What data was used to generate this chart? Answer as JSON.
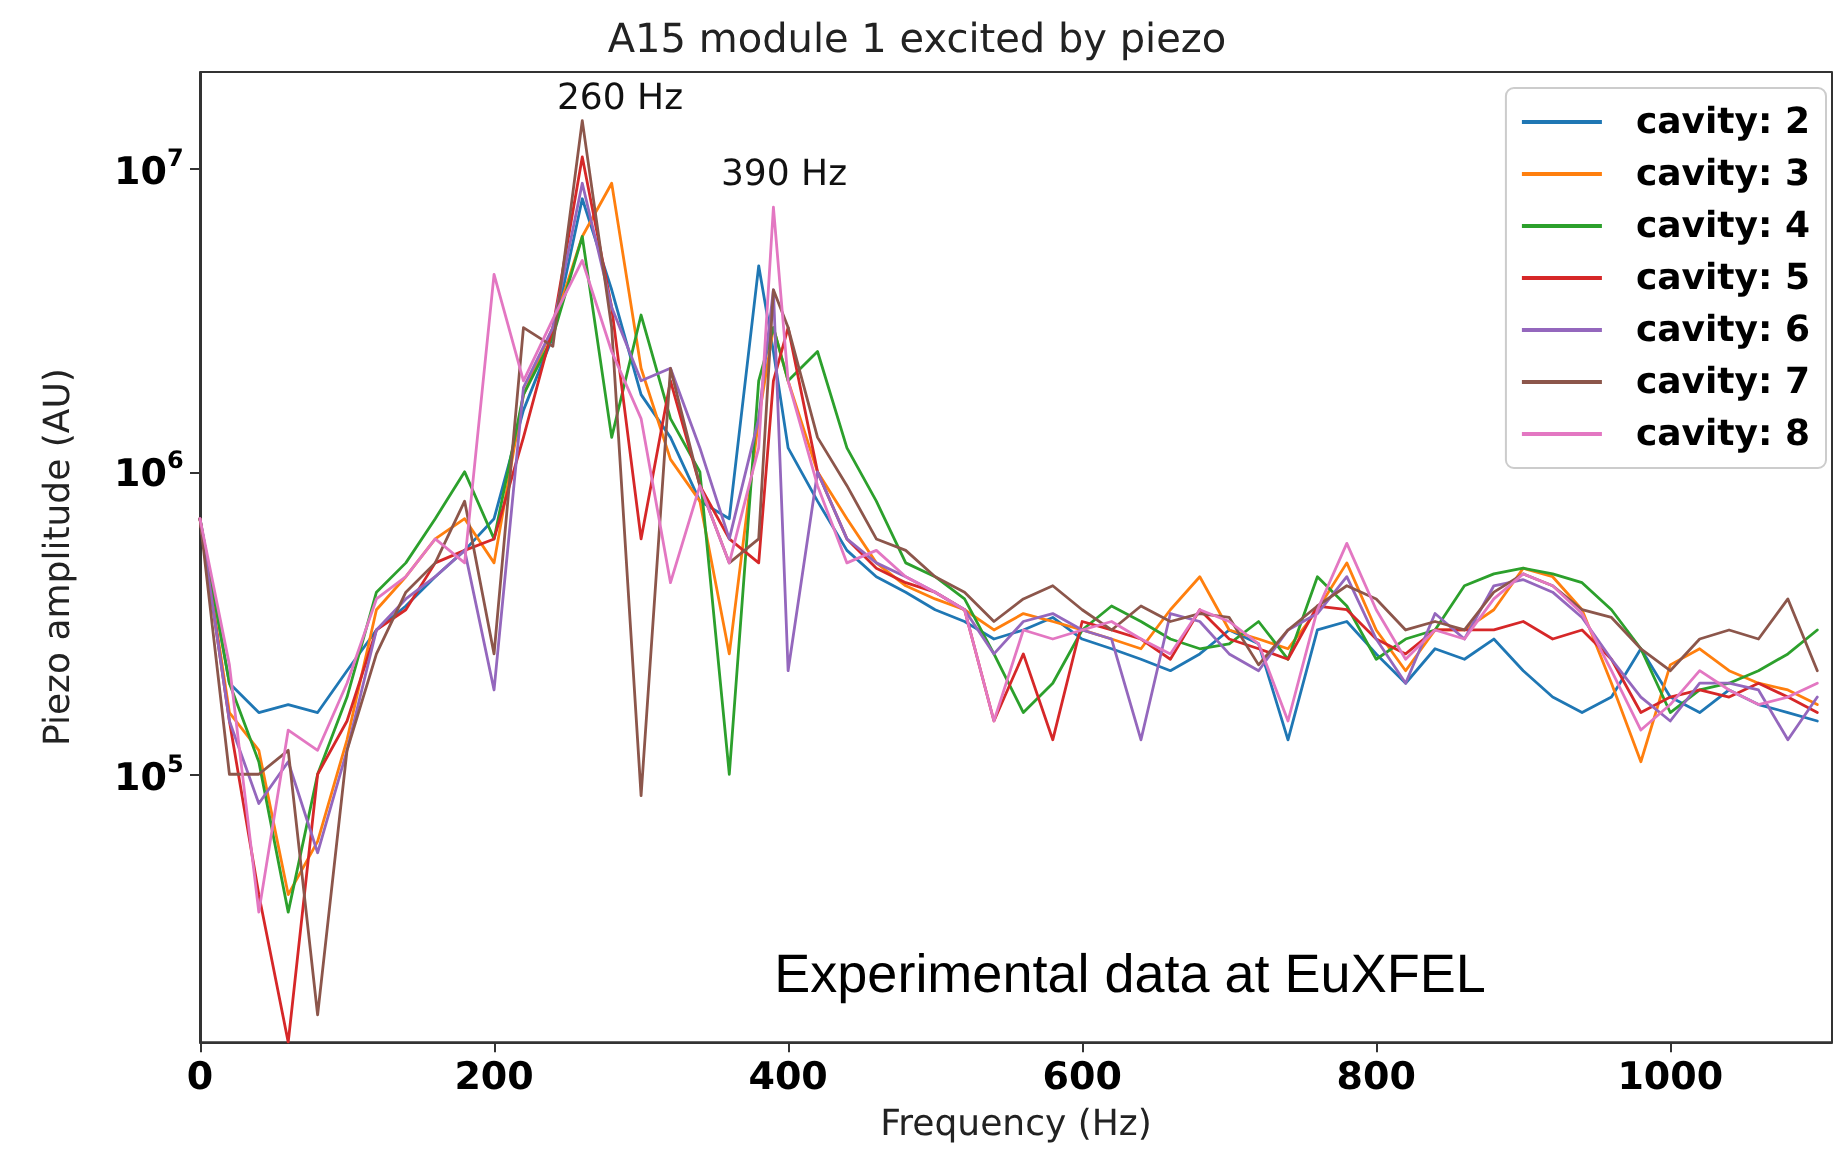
{
  "chart_data": {
    "type": "line",
    "title": "A15 module 1 excited by piezo",
    "xlabel": "Frequency (Hz)",
    "ylabel": "Piezo amplitude (AU)",
    "annotations": [
      "260 Hz",
      "390 Hz",
      "Experimental data at EuXFEL"
    ],
    "x": [
      0,
      20,
      40,
      60,
      80,
      100,
      120,
      140,
      160,
      180,
      200,
      220,
      240,
      260,
      280,
      300,
      320,
      340,
      360,
      380,
      390,
      400,
      420,
      440,
      460,
      480,
      500,
      520,
      540,
      560,
      580,
      600,
      620,
      640,
      660,
      680,
      700,
      720,
      740,
      760,
      780,
      800,
      820,
      840,
      860,
      880,
      900,
      920,
      940,
      960,
      980,
      1000,
      1020,
      1040,
      1060,
      1080,
      1100
    ],
    "series": [
      {
        "name": "cavity: 2",
        "color": "#1f77b4",
        "values": [
          700000.0,
          200000.0,
          160000.0,
          170000.0,
          160000.0,
          220000.0,
          300000.0,
          360000.0,
          450000.0,
          550000.0,
          700000.0,
          1600000.0,
          2800000.0,
          8000000.0,
          4000000.0,
          1800000.0,
          1300000.0,
          800000.0,
          700000.0,
          4800000.0,
          2500000.0,
          1200000.0,
          800000.0,
          550000.0,
          450000.0,
          400000.0,
          350000.0,
          320000.0,
          280000.0,
          300000.0,
          330000.0,
          280000.0,
          260000.0,
          240000.0,
          220000.0,
          250000.0,
          300000.0,
          270000.0,
          130000.0,
          300000.0,
          320000.0,
          250000.0,
          200000.0,
          260000.0,
          240000.0,
          280000.0,
          220000.0,
          180000.0,
          160000.0,
          180000.0,
          260000.0,
          180000.0,
          160000.0,
          190000.0,
          170000.0,
          160000.0,
          150000.0
        ]
      },
      {
        "name": "cavity: 3",
        "color": "#ff7f0e",
        "values": [
          700000.0,
          160000.0,
          120000.0,
          40000.0,
          60000.0,
          130000.0,
          350000.0,
          450000.0,
          600000.0,
          700000.0,
          500000.0,
          1800000.0,
          3000000.0,
          6000000.0,
          9000000.0,
          2200000.0,
          1100000.0,
          800000.0,
          250000.0,
          1500000.0,
          3000000.0,
          2000000.0,
          1000000.0,
          700000.0,
          500000.0,
          420000.0,
          380000.0,
          350000.0,
          300000.0,
          340000.0,
          320000.0,
          300000.0,
          280000.0,
          260000.0,
          350000.0,
          450000.0,
          300000.0,
          280000.0,
          260000.0,
          350000.0,
          500000.0,
          300000.0,
          220000.0,
          300000.0,
          300000.0,
          350000.0,
          480000.0,
          450000.0,
          350000.0,
          200000.0,
          110000.0,
          230000.0,
          260000.0,
          220000.0,
          200000.0,
          190000.0,
          170000.0
        ]
      },
      {
        "name": "cavity: 4",
        "color": "#2ca02c",
        "values": [
          700000.0,
          200000.0,
          110000.0,
          35000.0,
          100000.0,
          180000.0,
          400000.0,
          500000.0,
          700000.0,
          1000000.0,
          600000.0,
          1800000.0,
          2800000.0,
          6000000.0,
          1300000.0,
          3300000.0,
          1500000.0,
          1000000.0,
          100000.0,
          2000000.0,
          3000000.0,
          2000000.0,
          2500000.0,
          1200000.0,
          800000.0,
          500000.0,
          450000.0,
          380000.0,
          250000.0,
          160000.0,
          200000.0,
          300000.0,
          360000.0,
          320000.0,
          280000.0,
          260000.0,
          270000.0,
          320000.0,
          240000.0,
          450000.0,
          360000.0,
          240000.0,
          280000.0,
          300000.0,
          420000.0,
          460000.0,
          480000.0,
          460000.0,
          430000.0,
          350000.0,
          260000.0,
          160000.0,
          190000.0,
          200000.0,
          220000.0,
          250000.0,
          300000.0
        ]
      },
      {
        "name": "cavity: 5",
        "color": "#d62728",
        "values": [
          700000.0,
          150000.0,
          40000.0,
          13000.0,
          100000.0,
          150000.0,
          300000.0,
          350000.0,
          500000.0,
          550000.0,
          600000.0,
          1300000.0,
          3000000.0,
          11000000.0,
          3500000.0,
          600000.0,
          2000000.0,
          900000.0,
          600000.0,
          500000.0,
          2000000.0,
          3000000.0,
          1000000.0,
          600000.0,
          480000.0,
          430000.0,
          400000.0,
          350000.0,
          150000.0,
          250000.0,
          130000.0,
          320000.0,
          300000.0,
          280000.0,
          240000.0,
          350000.0,
          280000.0,
          260000.0,
          240000.0,
          360000.0,
          350000.0,
          280000.0,
          250000.0,
          300000.0,
          300000.0,
          300000.0,
          320000.0,
          280000.0,
          300000.0,
          240000.0,
          160000.0,
          180000.0,
          190000.0,
          180000.0,
          200000.0,
          180000.0,
          160000.0
        ]
      },
      {
        "name": "cavity: 6",
        "color": "#9467bd",
        "values": [
          700000.0,
          150000.0,
          80000.0,
          110000.0,
          55000.0,
          120000.0,
          300000.0,
          380000.0,
          450000.0,
          550000.0,
          190000.0,
          1900000.0,
          3000000.0,
          9000000.0,
          3500000.0,
          2000000.0,
          2200000.0,
          1200000.0,
          600000.0,
          1500000.0,
          4000000.0,
          220000.0,
          1000000.0,
          600000.0,
          500000.0,
          450000.0,
          400000.0,
          350000.0,
          250000.0,
          320000.0,
          340000.0,
          300000.0,
          280000.0,
          130000.0,
          340000.0,
          320000.0,
          250000.0,
          220000.0,
          300000.0,
          340000.0,
          450000.0,
          280000.0,
          200000.0,
          340000.0,
          280000.0,
          420000.0,
          440000.0,
          400000.0,
          330000.0,
          240000.0,
          180000.0,
          150000.0,
          200000.0,
          200000.0,
          190000.0,
          130000.0,
          180000.0
        ]
      },
      {
        "name": "cavity: 7",
        "color": "#8c564b",
        "values": [
          700000.0,
          100000.0,
          100000.0,
          120000.0,
          16000.0,
          120000.0,
          250000.0,
          400000.0,
          500000.0,
          800000.0,
          250000.0,
          3000000.0,
          2600000.0,
          14500000.0,
          3000000.0,
          85000.0,
          2200000.0,
          900000.0,
          500000.0,
          600000.0,
          4000000.0,
          3000000.0,
          1300000.0,
          900000.0,
          600000.0,
          550000.0,
          450000.0,
          400000.0,
          320000.0,
          380000.0,
          420000.0,
          350000.0,
          300000.0,
          360000.0,
          320000.0,
          340000.0,
          330000.0,
          230000.0,
          300000.0,
          360000.0,
          420000.0,
          380000.0,
          300000.0,
          320000.0,
          300000.0,
          400000.0,
          460000.0,
          420000.0,
          350000.0,
          330000.0,
          260000.0,
          220000.0,
          280000.0,
          300000.0,
          280000.0,
          380000.0,
          220000.0
        ]
      },
      {
        "name": "cavity: 8",
        "color": "#e377c2",
        "values": [
          700000.0,
          230000.0,
          35000.0,
          140000.0,
          120000.0,
          200000.0,
          380000.0,
          450000.0,
          600000.0,
          500000.0,
          4500000.0,
          2000000.0,
          3200000.0,
          5000000.0,
          2500000.0,
          1500000.0,
          430000.0,
          900000.0,
          500000.0,
          1200000.0,
          7500000.0,
          2000000.0,
          900000.0,
          500000.0,
          550000.0,
          450000.0,
          400000.0,
          350000.0,
          150000.0,
          300000.0,
          280000.0,
          300000.0,
          320000.0,
          280000.0,
          250000.0,
          350000.0,
          320000.0,
          270000.0,
          150000.0,
          350000.0,
          580000.0,
          350000.0,
          240000.0,
          300000.0,
          280000.0,
          380000.0,
          460000.0,
          420000.0,
          340000.0,
          220000.0,
          140000.0,
          170000.0,
          220000.0,
          190000.0,
          170000.0,
          180000.0,
          200000.0
        ]
      }
    ],
    "log": "y",
    "xlim": [
      0,
      1110
    ],
    "ylim": [
      13000,
      21000000
    ],
    "xticks": [
      0,
      200,
      400,
      600,
      800,
      1000
    ],
    "yticks": [
      {
        "value": 100000,
        "label": "10$^{5}$"
      },
      {
        "value": 1000000,
        "label": "10$^{6}$"
      },
      {
        "value": 10000000,
        "label": "10$^{7}$"
      }
    ],
    "grid": false,
    "legend": "top right",
    "marker": "none",
    "line_style": "solid"
  }
}
